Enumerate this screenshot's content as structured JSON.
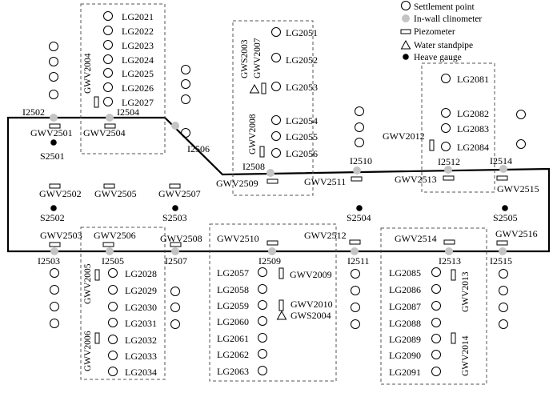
{
  "legend": {
    "settlement_point": "Settlement point",
    "inwall_clinometer": "In-wall clinometer",
    "piezometer": "Piezometer",
    "water_standpipe": "Water standpipe",
    "heave_gauge": "Heave gauge"
  },
  "settlement_points": {
    "group_top_left": [
      "LG2021",
      "LG2022",
      "LG2023",
      "LG2024",
      "LG2025",
      "LG2026",
      "LG2027"
    ],
    "group_top_mid": [
      "LG2051",
      "LG2052",
      "LG2053",
      "LG2054",
      "LG2055",
      "LG2056"
    ],
    "group_top_right": [
      "LG2081",
      "LG2082",
      "LG2083",
      "LG2084"
    ],
    "group_bottom_left": [
      "LG2028",
      "LG2029",
      "LG2030",
      "LG2031",
      "LG2032",
      "LG2033",
      "LG2034"
    ],
    "group_bottom_mid": [
      "LG2057",
      "LG2058",
      "LG2059",
      "LG2060",
      "LG2061",
      "LG2062",
      "LG2063"
    ],
    "group_bottom_right": [
      "LG2085",
      "LG2086",
      "LG2087",
      "LG2088",
      "LG2089",
      "LG2090",
      "LG2091"
    ]
  },
  "clinometers": {
    "top": [
      "I2502",
      "I2504",
      "I2506",
      "I2508",
      "I2510",
      "I2512",
      "I2514"
    ],
    "bottom": [
      "I2503",
      "I2505",
      "I2507",
      "I2509",
      "I2511",
      "I2513",
      "I2515"
    ]
  },
  "heave_gauges": [
    "S2501",
    "S2502",
    "S2503",
    "S2504",
    "S2505"
  ],
  "piezometers_wall": {
    "top": [
      "GWV2501",
      "GWV2504",
      "GWV2509",
      "GWV2511",
      "GWV2513"
    ],
    "middle": [
      "GWV2502",
      "GWV2505",
      "GWV2507",
      "GWV2515"
    ],
    "bottom": [
      "GWV2503",
      "GWV2506",
      "GWV2508",
      "GWV2510",
      "GWV2512",
      "GWV2514",
      "GWV2516"
    ]
  },
  "piezometers_vertical": [
    "GWV2004",
    "GWV2007",
    "GWV2008",
    "GWV2012",
    "GWV2005",
    "GWV2006",
    "GWV2009",
    "GWV2010",
    "GWV2013",
    "GWV2014"
  ],
  "standpipes": [
    "GWS2003",
    "GWS2004"
  ]
}
